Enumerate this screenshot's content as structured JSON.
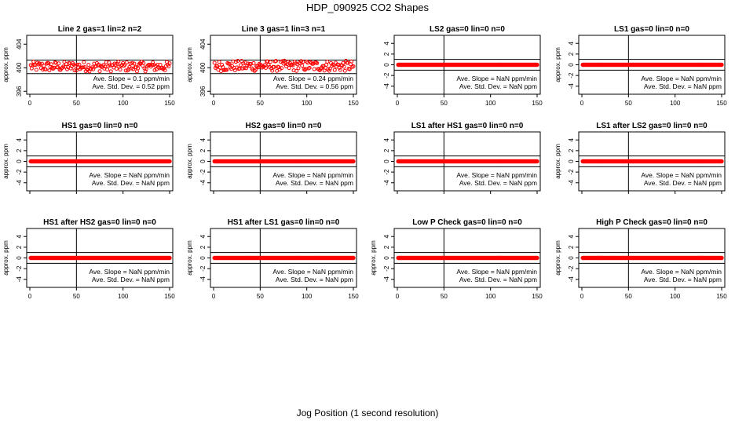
{
  "figure": {
    "title": "HDP_090925  CO2 Shapes",
    "xlabel": "Jog Position (1 second resolution)"
  },
  "chart_data": [
    {
      "type": "scatter",
      "title": "Line 2 gas=1 lin=2 n=2",
      "ylabel": "approx. ppm",
      "xlim": [
        0,
        150
      ],
      "ylim": [
        395.5,
        405.5
      ],
      "xticks": [
        "0",
        "50",
        "100",
        "150"
      ],
      "yticks": [
        "396",
        "400",
        "404"
      ],
      "ytick_values": [
        396,
        400,
        404
      ],
      "hlines": [
        399,
        401.3
      ],
      "vline": 50,
      "series": [
        {
          "mean": 400.2,
          "spread": 0.52,
          "color": "#ff0000",
          "n_points": 150
        }
      ],
      "annotations": [
        "Ave. Slope =  0.1  ppm/min",
        "Ave. Std. Dev. =  0.52  ppm"
      ]
    },
    {
      "type": "scatter",
      "title": "Line 3 gas=1 lin=3 n=1",
      "ylabel": "approx. ppm",
      "xlim": [
        0,
        150
      ],
      "ylim": [
        395.5,
        405.5
      ],
      "xticks": [
        "0",
        "50",
        "100",
        "150"
      ],
      "yticks": [
        "396",
        "400",
        "404"
      ],
      "ytick_values": [
        396,
        400,
        404
      ],
      "hlines": [
        399,
        401.3
      ],
      "vline": 50,
      "series": [
        {
          "mean": 400.3,
          "spread": 0.56,
          "color": "#ff0000",
          "n_points": 150
        }
      ],
      "annotations": [
        "Ave. Slope =  0.24  ppm/min",
        "Ave. Std. Dev. =  0.56  ppm"
      ]
    },
    {
      "type": "scatter",
      "title": "LS2 gas=0 lin=0 n=0",
      "ylabel": "",
      "xlim": [
        0,
        150
      ],
      "ylim": [
        -5.5,
        5.5
      ],
      "xticks": [
        "0",
        "50",
        "100",
        "150"
      ],
      "yticks": [
        "-4",
        "-2",
        "0",
        "2",
        "4"
      ],
      "ytick_values": [
        -4,
        -2,
        0,
        2,
        4
      ],
      "hlines": [
        -1,
        1
      ],
      "vline": 50,
      "series": [
        {
          "mean": 0,
          "spread": 0,
          "color": "#ff0000",
          "n_points": 150
        }
      ],
      "annotations": [
        "Ave. Slope =  NaN  ppm/min",
        "Ave. Std. Dev. =  NaN  ppm"
      ]
    },
    {
      "type": "scatter",
      "title": "LS1 gas=0 lin=0 n=0",
      "ylabel": "approx. ppm",
      "xlim": [
        0,
        150
      ],
      "ylim": [
        -5.5,
        5.5
      ],
      "xticks": [
        "0",
        "50",
        "100",
        "150"
      ],
      "yticks": [
        "-4",
        "-2",
        "0",
        "2",
        "4"
      ],
      "ytick_values": [
        -4,
        -2,
        0,
        2,
        4
      ],
      "hlines": [
        -1,
        1
      ],
      "vline": 50,
      "series": [
        {
          "mean": 0,
          "spread": 0,
          "color": "#ff0000",
          "n_points": 150
        }
      ],
      "annotations": [
        "Ave. Slope =  NaN  ppm/min",
        "Ave. Std. Dev. =  NaN  ppm"
      ]
    },
    {
      "type": "scatter",
      "title": "HS1 gas=0 lin=0 n=0",
      "ylabel": "approx. ppm",
      "xlim": [
        0,
        150
      ],
      "ylim": [
        -5.5,
        5.5
      ],
      "xticks": [],
      "yticks": [
        "-4",
        "-2",
        "0",
        "2",
        "4"
      ],
      "ytick_values": [
        -4,
        -2,
        0,
        2,
        4
      ],
      "hlines": [
        -1,
        1
      ],
      "vline": 50,
      "series": [
        {
          "mean": 0,
          "spread": 0,
          "color": "#ff0000",
          "n_points": 150
        }
      ],
      "annotations": [
        "Ave. Slope =  NaN  ppm/min",
        "Ave. Std. Dev. =  NaN  ppm"
      ]
    },
    {
      "type": "scatter",
      "title": "HS2 gas=0 lin=0 n=0",
      "ylabel": "approx. ppm",
      "xlim": [
        0,
        150
      ],
      "ylim": [
        -5.5,
        5.5
      ],
      "xticks": [],
      "yticks": [
        "-4",
        "-2",
        "0",
        "2",
        "4"
      ],
      "ytick_values": [
        -4,
        -2,
        0,
        2,
        4
      ],
      "hlines": [
        -1,
        1
      ],
      "vline": 50,
      "series": [
        {
          "mean": 0,
          "spread": 0,
          "color": "#ff0000",
          "n_points": 150
        }
      ],
      "annotations": [
        "Ave. Slope =  NaN  ppm/min",
        "Ave. Std. Dev. =  NaN  ppm"
      ]
    },
    {
      "type": "scatter",
      "title": "LS1 after HS1 gas=0 lin=0 n=0",
      "ylabel": "",
      "xlim": [
        0,
        150
      ],
      "ylim": [
        -5.5,
        5.5
      ],
      "xticks": [],
      "yticks": [
        "-4",
        "-2",
        "0",
        "2",
        "4"
      ],
      "ytick_values": [
        -4,
        -2,
        0,
        2,
        4
      ],
      "hlines": [
        -1,
        1
      ],
      "vline": 50,
      "series": [
        {
          "mean": 0,
          "spread": 0,
          "color": "#ff0000",
          "n_points": 150
        }
      ],
      "annotations": [
        "Ave. Slope =  NaN  ppm/min",
        "Ave. Std. Dev. =  NaN  ppm"
      ]
    },
    {
      "type": "scatter",
      "title": "LS1 after LS2 gas=0 lin=0 n=0",
      "ylabel": "approx. ppm",
      "xlim": [
        0,
        150
      ],
      "ylim": [
        -5.5,
        5.5
      ],
      "xticks": [],
      "yticks": [
        "-4",
        "-2",
        "0",
        "2",
        "4"
      ],
      "ytick_values": [
        -4,
        -2,
        0,
        2,
        4
      ],
      "hlines": [
        -1,
        1
      ],
      "vline": 50,
      "series": [
        {
          "mean": 0,
          "spread": 0,
          "color": "#ff0000",
          "n_points": 150
        }
      ],
      "annotations": [
        "Ave. Slope =  NaN  ppm/min",
        "Ave. Std. Dev. =  NaN  ppm"
      ]
    },
    {
      "type": "scatter",
      "title": "HS1 after HS2 gas=0 lin=0 n=0",
      "ylabel": "approx. ppm",
      "xlim": [
        0,
        150
      ],
      "ylim": [
        -5.5,
        5.5
      ],
      "xticks": [
        "0",
        "50",
        "100",
        "150"
      ],
      "yticks": [
        "-4",
        "-2",
        "0",
        "2",
        "4"
      ],
      "ytick_values": [
        -4,
        -2,
        0,
        2,
        4
      ],
      "hlines": [
        -1,
        1
      ],
      "vline": 50,
      "series": [
        {
          "mean": 0,
          "spread": 0,
          "color": "#ff0000",
          "n_points": 150
        }
      ],
      "annotations": [
        "Ave. Slope =  NaN  ppm/min",
        "Ave. Std. Dev. =  NaN  ppm"
      ]
    },
    {
      "type": "scatter",
      "title": "HS1 after LS1 gas=0 lin=0 n=0",
      "ylabel": "approx. ppm",
      "xlim": [
        0,
        150
      ],
      "ylim": [
        -5.5,
        5.5
      ],
      "xticks": [
        "0",
        "50",
        "100",
        "150"
      ],
      "yticks": [
        "-4",
        "-2",
        "0",
        "2",
        "4"
      ],
      "ytick_values": [
        -4,
        -2,
        0,
        2,
        4
      ],
      "hlines": [
        -1,
        1
      ],
      "vline": 50,
      "series": [
        {
          "mean": 0,
          "spread": 0,
          "color": "#ff0000",
          "n_points": 150
        }
      ],
      "annotations": [
        "Ave. Slope =  NaN  ppm/min",
        "Ave. Std. Dev. =  NaN  ppm"
      ]
    },
    {
      "type": "scatter",
      "title": "Low P Check gas=0 lin=0 n=0",
      "ylabel": "approx. ppm",
      "xlim": [
        0,
        150
      ],
      "ylim": [
        -5.5,
        5.5
      ],
      "xticks": [
        "0",
        "50",
        "100",
        "150"
      ],
      "yticks": [
        "-4",
        "-2",
        "0",
        "2",
        "4"
      ],
      "ytick_values": [
        -4,
        -2,
        0,
        2,
        4
      ],
      "hlines": [
        -1,
        1
      ],
      "vline": 50,
      "series": [
        {
          "mean": 0,
          "spread": 0,
          "color": "#ff0000",
          "n_points": 150
        }
      ],
      "annotations": [
        "Ave. Slope =  NaN  ppm/min",
        "Ave. Std. Dev. =  NaN  ppm"
      ]
    },
    {
      "type": "scatter",
      "title": "High P Check gas=0 lin=0 n=0",
      "ylabel": "approx. ppm",
      "xlim": [
        0,
        150
      ],
      "ylim": [
        -5.5,
        5.5
      ],
      "xticks": [
        "0",
        "50",
        "100",
        "150"
      ],
      "yticks": [
        "-4",
        "-2",
        "0",
        "2",
        "4"
      ],
      "ytick_values": [
        -4,
        -2,
        0,
        2,
        4
      ],
      "hlines": [
        -1,
        1
      ],
      "vline": 50,
      "series": [
        {
          "mean": 0,
          "spread": 0,
          "color": "#ff0000",
          "n_points": 150
        }
      ],
      "annotations": [
        "Ave. Slope =  NaN  ppm/min",
        "Ave. Std. Dev. =  NaN  ppm"
      ]
    }
  ]
}
